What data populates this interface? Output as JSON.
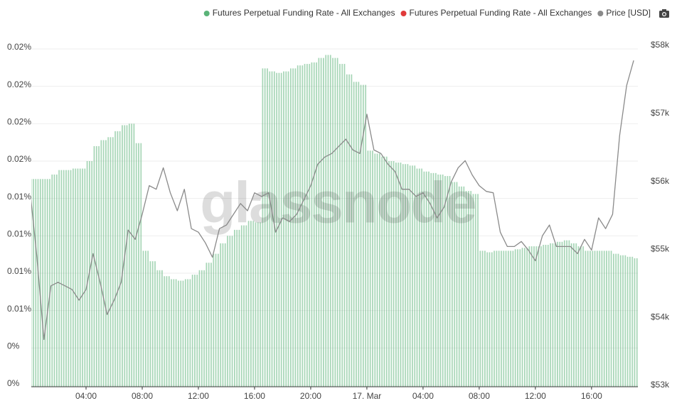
{
  "chart_data": {
    "type": "bar_line",
    "watermark": "glassnode",
    "grid": true,
    "legend_position": "top-right",
    "series": [
      {
        "name": "Futures Perpetual Funding Rate - All Exchanges",
        "color": "#5ab378",
        "type": "bar",
        "values": [
          0.0138,
          0.0138,
          0.0138,
          0.0141,
          0.0144,
          0.0144,
          0.0145,
          0.0145,
          0.015,
          0.016,
          0.0164,
          0.0166,
          0.017,
          0.0174,
          0.0175,
          0.0162,
          0.009,
          0.0083,
          0.0077,
          0.0073,
          0.0071,
          0.007,
          0.0071,
          0.0074,
          0.0077,
          0.0082,
          0.0088,
          0.0095,
          0.01,
          0.0104,
          0.0107,
          0.011,
          0.0109,
          0.0212,
          0.021,
          0.0209,
          0.021,
          0.0212,
          0.0214,
          0.0215,
          0.0216,
          0.0219,
          0.0221,
          0.0219,
          0.0215,
          0.0208,
          0.0203,
          0.0201,
          0.0157,
          0.0155,
          0.0153,
          0.015,
          0.0149,
          0.0148,
          0.0147,
          0.0145,
          0.0143,
          0.0142,
          0.0141,
          0.014,
          0.0136,
          0.0133,
          0.013,
          0.0128,
          0.009,
          0.0089,
          0.009,
          0.009,
          0.009,
          0.0091,
          0.0092,
          0.0093,
          0.0093,
          0.0094,
          0.0095,
          0.0096,
          0.0097,
          0.0095,
          0.0093,
          0.009,
          0.009,
          0.009,
          0.009,
          0.0088,
          0.0087,
          0.0086,
          0.0085
        ]
      },
      {
        "name": "Futures Perpetual Funding Rate - All Exchanges",
        "color": "#e03a3a",
        "type": "bar"
      },
      {
        "name": "Price [USD]",
        "color": "#8a8a8a",
        "type": "line",
        "axis": "y2",
        "values": [
          55884,
          54884,
          53674,
          54463,
          54516,
          54463,
          54410,
          54253,
          54410,
          54937,
          54516,
          54042,
          54253,
          54516,
          55284,
          55147,
          55516,
          55937,
          55884,
          56200,
          55832,
          55568,
          55884,
          55305,
          55253,
          55095,
          54884,
          55305,
          55358,
          55516,
          55674,
          55568,
          55832,
          55779,
          55832,
          55253,
          55463,
          55411,
          55516,
          55726,
          55937,
          56253,
          56358,
          56410,
          56516,
          56621,
          56463,
          56410,
          56989,
          56463,
          56410,
          56253,
          56147,
          55884,
          55884,
          55779,
          55832,
          55674,
          55463,
          55621,
          55989,
          56200,
          56305,
          56095,
          55937,
          55853,
          55832,
          55253,
          55042,
          55042,
          55116,
          54989,
          54832,
          55200,
          55358,
          55042,
          55042,
          55042,
          54937,
          55147,
          54989,
          55463,
          55305,
          55516,
          56674,
          57411,
          57779
        ]
      }
    ],
    "x": [
      0,
      0.5,
      1,
      1.5,
      2,
      2.5,
      3,
      3.5,
      4,
      4.5,
      5,
      5.5,
      6,
      6.5,
      7,
      7.5,
      8,
      8.5,
      9,
      9.5,
      10,
      10.5,
      11,
      11.5,
      12,
      12.5,
      13,
      13.5,
      14,
      14.5,
      15,
      15.5,
      16,
      16.5,
      17,
      17.5,
      18,
      18.5,
      19,
      19.5,
      20,
      20.5,
      21,
      21.5,
      22,
      22.5,
      23,
      23.5,
      24,
      24.5,
      25,
      25.5,
      26,
      26.5,
      27,
      27.5,
      28,
      28.5,
      29,
      29.5,
      30,
      30.5,
      31,
      31.5,
      32,
      32.5,
      33,
      33.5,
      34,
      34.5,
      35,
      35.5,
      36,
      36.5,
      37,
      37.5,
      38,
      38.5,
      39,
      39.5,
      40,
      40.5,
      41,
      41.5,
      42,
      42.5,
      43
    ],
    "xlim": [
      0.1,
      43.3
    ],
    "xticks": [
      {
        "value": 4,
        "label": "04:00"
      },
      {
        "value": 8,
        "label": "08:00"
      },
      {
        "value": 12,
        "label": "12:00"
      },
      {
        "value": 16,
        "label": "16:00"
      },
      {
        "value": 20,
        "label": "20:00"
      },
      {
        "value": 24,
        "label": "17. Mar"
      },
      {
        "value": 28,
        "label": "04:00"
      },
      {
        "value": 32,
        "label": "08:00"
      },
      {
        "value": 36,
        "label": "12:00"
      },
      {
        "value": 40,
        "label": "16:00"
      }
    ],
    "ylim": [
      0,
      0.0225
    ],
    "yticks": [
      {
        "value": 0,
        "label": "0%"
      },
      {
        "value": 0.0025,
        "label": "0%"
      },
      {
        "value": 0.005,
        "label": "0.01%"
      },
      {
        "value": 0.0075,
        "label": "0.01%"
      },
      {
        "value": 0.01,
        "label": "0.01%"
      },
      {
        "value": 0.0125,
        "label": "0.01%"
      },
      {
        "value": 0.015,
        "label": "0.02%"
      },
      {
        "value": 0.0175,
        "label": "0.02%"
      },
      {
        "value": 0.02,
        "label": "0.02%"
      },
      {
        "value": 0.0225,
        "label": "0.02%"
      }
    ],
    "y2lim": [
      53000,
      58000
    ],
    "y2ticks": [
      {
        "value": 53000,
        "label": "$53k"
      },
      {
        "value": 54000,
        "label": "$54k"
      },
      {
        "value": 55000,
        "label": "$55k"
      },
      {
        "value": 56000,
        "label": "$56k"
      },
      {
        "value": 57000,
        "label": "$57k"
      },
      {
        "value": 58000,
        "label": "$58k"
      }
    ]
  }
}
